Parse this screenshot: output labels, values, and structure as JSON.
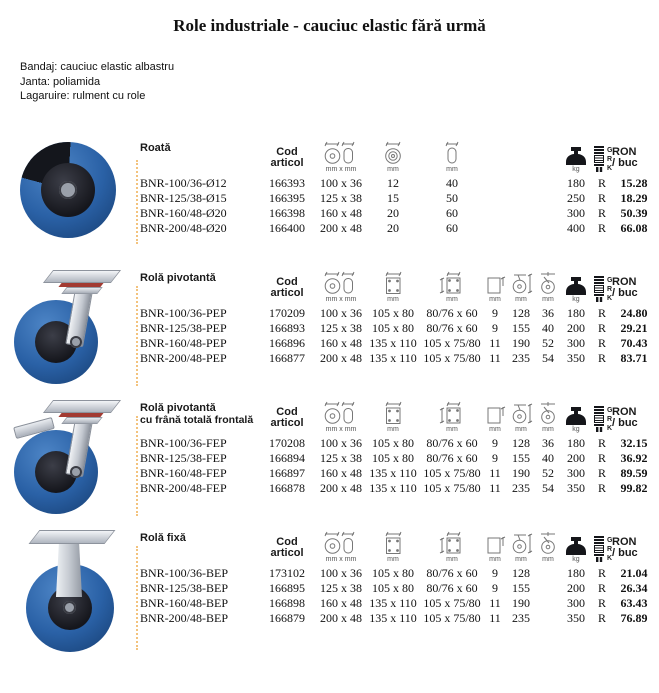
{
  "page": {
    "title": "Role industriale - cauciuc elastic fără urmă",
    "info_lines": [
      "Bandaj: cauciuc elastic albastru",
      "Janta: poliamida",
      "Lagaruire: rulment cu role"
    ]
  },
  "table_header": {
    "cod_line1": "Cod",
    "cod_line2": "articol",
    "price_line1": "RON",
    "price_line2": "/ buc",
    "unit_wheel": "mm x mm",
    "unit_mm": "mm",
    "unit_kg": "kg",
    "bearing_g": "G",
    "bearing_r": "R",
    "bearing_k": "K"
  },
  "colors": {
    "wheel_blue": "#2a61a6",
    "core_black": "#15161c",
    "metal_gray": "#c2c7cf",
    "cut_mark_orange": "#f0b054",
    "red_ring": "#a23a32"
  },
  "sections": [
    {
      "title": "Roată",
      "subtitle": "",
      "rows": [
        [
          "BNR-100/36-Ø12",
          "166393",
          "100 x 36",
          "12",
          "40",
          "",
          "",
          "",
          "180",
          "R",
          "15.28"
        ],
        [
          "BNR-125/38-Ø15",
          "166395",
          "125 x 38",
          "15",
          "50",
          "",
          "",
          "",
          "250",
          "R",
          "18.29"
        ],
        [
          "BNR-160/48-Ø20",
          "166398",
          "160 x 48",
          "20",
          "60",
          "",
          "",
          "",
          "300",
          "R",
          "50.39"
        ],
        [
          "BNR-200/48-Ø20",
          "166400",
          "200 x 48",
          "20",
          "60",
          "",
          "",
          "",
          "400",
          "R",
          "66.08"
        ]
      ]
    },
    {
      "title": "Rolă pivotantă",
      "subtitle": "",
      "rows": [
        [
          "BNR-100/36-PEP",
          "170209",
          "100 x 36",
          "105 x 80",
          "80/76 x 60",
          "9",
          "128",
          "36",
          "180",
          "R",
          "24.80"
        ],
        [
          "BNR-125/38-PEP",
          "166893",
          "125 x 38",
          "105 x 80",
          "80/76 x 60",
          "9",
          "155",
          "40",
          "200",
          "R",
          "29.21"
        ],
        [
          "BNR-160/48-PEP",
          "166896",
          "160 x 48",
          "135 x 110",
          "105 x 75/80",
          "11",
          "190",
          "52",
          "300",
          "R",
          "70.43"
        ],
        [
          "BNR-200/48-PEP",
          "166877",
          "200 x 48",
          "135 x 110",
          "105 x 75/80",
          "11",
          "235",
          "54",
          "350",
          "R",
          "83.71"
        ]
      ]
    },
    {
      "title": "Rolă pivotantă",
      "subtitle": "cu frână totală frontală",
      "rows": [
        [
          "BNR-100/36-FEP",
          "170208",
          "100 x 36",
          "105 x 80",
          "80/76 x 60",
          "9",
          "128",
          "36",
          "180",
          "R",
          "32.15"
        ],
        [
          "BNR-125/38-FEP",
          "166894",
          "125 x 38",
          "105 x 80",
          "80/76 x 60",
          "9",
          "155",
          "40",
          "200",
          "R",
          "36.92"
        ],
        [
          "BNR-160/48-FEP",
          "166897",
          "160 x 48",
          "135 x 110",
          "105 x 75/80",
          "11",
          "190",
          "52",
          "300",
          "R",
          "89.59"
        ],
        [
          "BNR-200/48-FEP",
          "166878",
          "200 x 48",
          "135 x 110",
          "105 x 75/80",
          "11",
          "235",
          "54",
          "350",
          "R",
          "99.82"
        ]
      ]
    },
    {
      "title": "Rolă fixă",
      "subtitle": "",
      "rows": [
        [
          "BNR-100/36-BEP",
          "173102",
          "100 x 36",
          "105 x 80",
          "80/76 x 60",
          "9",
          "128",
          "",
          "180",
          "R",
          "21.04"
        ],
        [
          "BNR-125/38-BEP",
          "166895",
          "125 x 38",
          "105 x 80",
          "80/76 x 60",
          "9",
          "155",
          "",
          "200",
          "R",
          "26.34"
        ],
        [
          "BNR-160/48-BEP",
          "166898",
          "160 x 48",
          "135 x 110",
          "105 x 75/80",
          "11",
          "190",
          "",
          "300",
          "R",
          "63.43"
        ],
        [
          "BNR-200/48-BEP",
          "166879",
          "200 x 48",
          "135 x 110",
          "105 x 75/80",
          "11",
          "235",
          "",
          "350",
          "R",
          "76.89"
        ]
      ]
    }
  ]
}
